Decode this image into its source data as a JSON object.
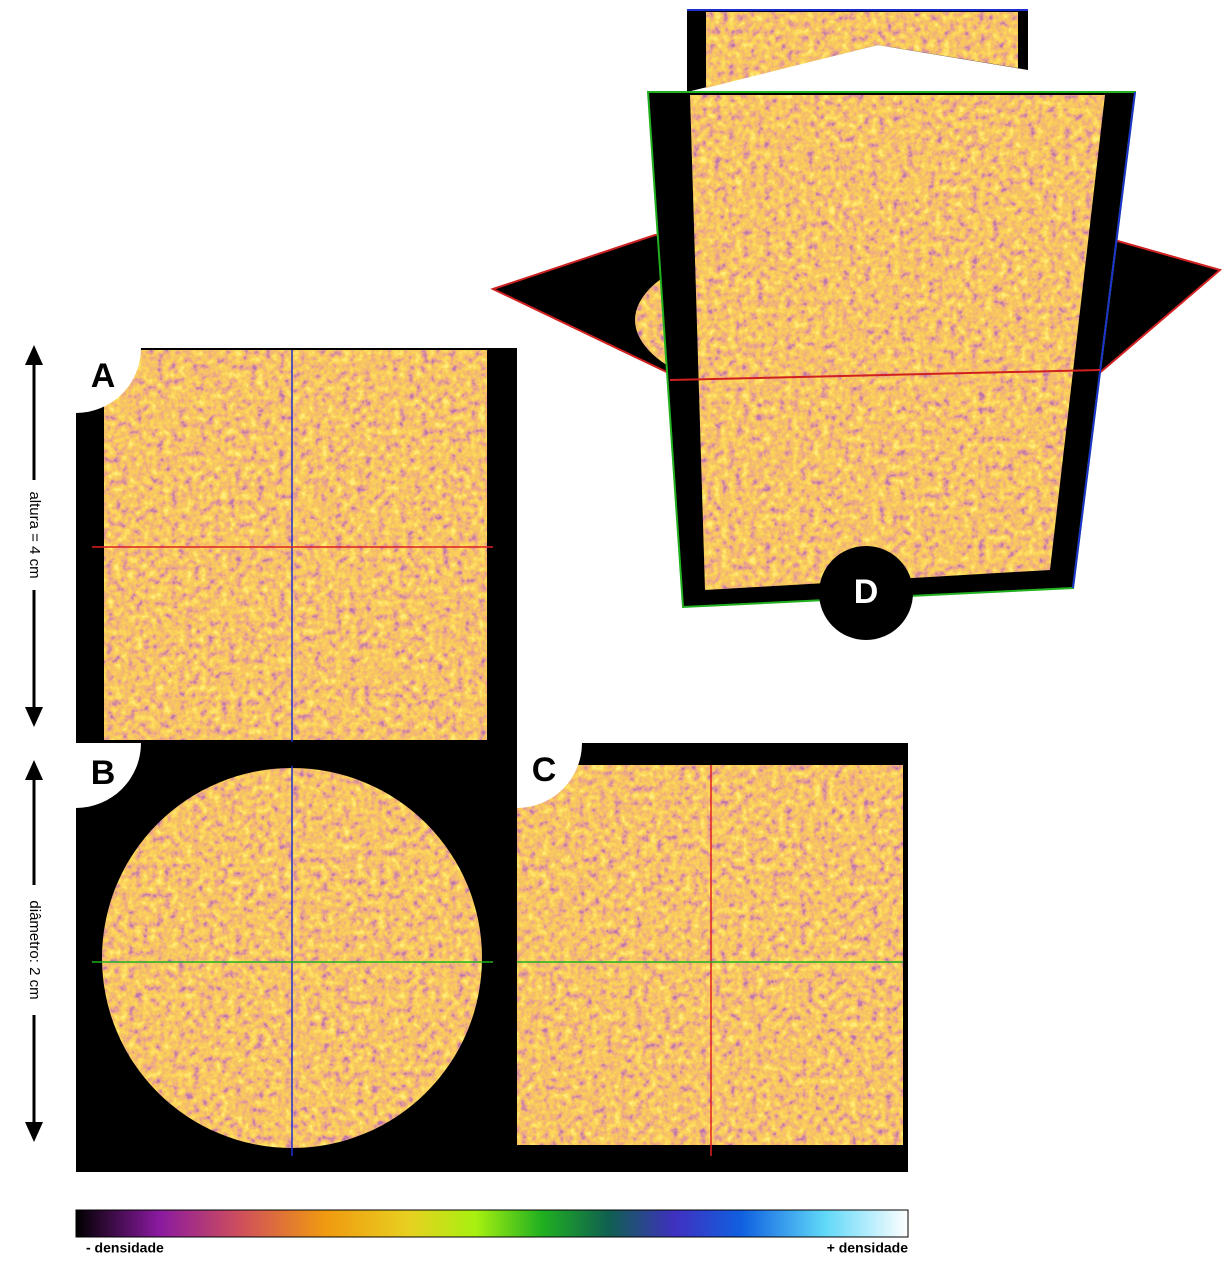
{
  "panels": {
    "a": "A",
    "b": "B",
    "c": "C",
    "d": "D"
  },
  "dimensions": {
    "height": "altura = 4 cm",
    "diameter": "diâmetro: 2 cm"
  },
  "colorbar": {
    "low": "- densidade",
    "high": "+ densidade"
  }
}
